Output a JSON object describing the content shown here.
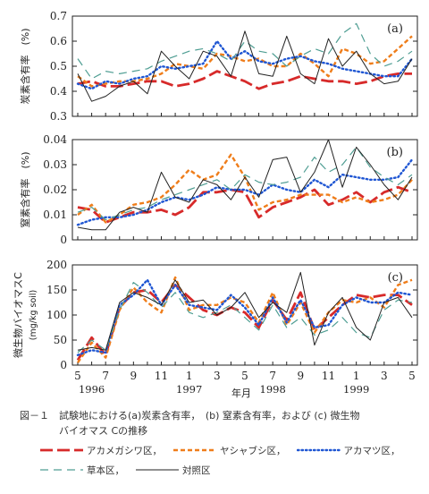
{
  "figure": {
    "caption_line1": "図－１　試験地における(a)炭素含有率，　(b) 窒素含有率，および (c) 微生物",
    "caption_line2": "バイオマス Cの推移"
  },
  "colors": {
    "s1": "#d72a2a",
    "s2": "#ef7d1a",
    "s3": "#1f56d3",
    "s4": "#4f9e93",
    "s5": "#222222"
  },
  "chart_data": [
    {
      "type": "line",
      "panel_label": "(a)",
      "ylabel": "炭素含有率　(%)",
      "ylim": [
        0.3,
        0.7
      ],
      "yticks": [
        "0.3",
        "0.4",
        "0.5",
        "0.6",
        "0.7"
      ],
      "ytick_values": [
        0.3,
        0.4,
        0.5,
        0.6,
        0.7
      ],
      "x": [
        1,
        2,
        3,
        4,
        5,
        6,
        7,
        8,
        9,
        10,
        11,
        12,
        13,
        14,
        15,
        16,
        17,
        18,
        19,
        20,
        21,
        22,
        23,
        24,
        25
      ],
      "series": [
        {
          "name": "アカメガシワ区",
          "color_key": "s1",
          "dash": "long",
          "values": [
            0.43,
            0.44,
            0.42,
            0.42,
            0.43,
            0.44,
            0.44,
            0.42,
            0.43,
            0.45,
            0.48,
            0.46,
            0.44,
            0.41,
            0.43,
            0.44,
            0.46,
            0.45,
            0.44,
            0.44,
            0.43,
            0.44,
            0.46,
            0.47,
            0.47
          ]
        },
        {
          "name": "ヤシャブシ区",
          "color_key": "s2",
          "dash": "short",
          "values": [
            0.46,
            0.42,
            0.43,
            0.44,
            0.44,
            0.45,
            0.47,
            0.51,
            0.5,
            0.49,
            0.55,
            0.54,
            0.52,
            0.53,
            0.5,
            0.5,
            0.55,
            0.51,
            0.46,
            0.57,
            0.55,
            0.51,
            0.52,
            0.57,
            0.62
          ]
        },
        {
          "name": "アカマツ区",
          "color_key": "s3",
          "dash": "dot",
          "values": [
            0.43,
            0.41,
            0.44,
            0.43,
            0.45,
            0.46,
            0.5,
            0.49,
            0.5,
            0.51,
            0.6,
            0.53,
            0.56,
            0.52,
            0.51,
            0.53,
            0.54,
            0.52,
            0.51,
            0.49,
            0.48,
            0.47,
            0.46,
            0.46,
            0.53
          ]
        },
        {
          "name": "草本区",
          "color_key": "s4",
          "dash": "dash",
          "values": [
            0.53,
            0.45,
            0.48,
            0.47,
            0.48,
            0.49,
            0.52,
            0.54,
            0.56,
            0.57,
            0.55,
            0.52,
            0.6,
            0.56,
            0.55,
            0.5,
            0.54,
            0.57,
            0.55,
            0.63,
            0.67,
            0.55,
            0.5,
            0.52,
            0.56
          ]
        },
        {
          "name": "対照区",
          "color_key": "s5",
          "dash": "solid",
          "values": [
            0.47,
            0.36,
            0.38,
            0.42,
            0.44,
            0.39,
            0.56,
            0.5,
            0.45,
            0.56,
            0.54,
            0.46,
            0.64,
            0.47,
            0.46,
            0.62,
            0.47,
            0.43,
            0.61,
            0.5,
            0.56,
            0.47,
            0.43,
            0.44,
            0.53
          ]
        }
      ]
    },
    {
      "type": "line",
      "panel_label": "(b)",
      "ylabel": "窒素含有率　(%)",
      "ylim": [
        0,
        0.04
      ],
      "yticks": [
        "0",
        "0.01",
        "0.02",
        "0.03",
        "0.04"
      ],
      "ytick_values": [
        0,
        0.01,
        0.02,
        0.03,
        0.04
      ],
      "x": [
        1,
        2,
        3,
        4,
        5,
        6,
        7,
        8,
        9,
        10,
        11,
        12,
        13,
        14,
        15,
        16,
        17,
        18,
        19,
        20,
        21,
        22,
        23,
        24,
        25
      ],
      "series": [
        {
          "name": "アカメガシワ区",
          "color_key": "s1",
          "dash": "long",
          "values": [
            0.013,
            0.012,
            0.007,
            0.009,
            0.011,
            0.011,
            0.012,
            0.01,
            0.013,
            0.019,
            0.019,
            0.02,
            0.019,
            0.009,
            0.013,
            0.015,
            0.017,
            0.02,
            0.014,
            0.016,
            0.019,
            0.015,
            0.019,
            0.021,
            0.019
          ]
        },
        {
          "name": "ヤシャブシ区",
          "color_key": "s2",
          "dash": "short",
          "values": [
            0.01,
            0.014,
            0.007,
            0.01,
            0.014,
            0.015,
            0.017,
            0.022,
            0.028,
            0.024,
            0.026,
            0.034,
            0.025,
            0.012,
            0.015,
            0.016,
            0.018,
            0.018,
            0.018,
            0.015,
            0.017,
            0.015,
            0.016,
            0.018,
            0.024
          ]
        },
        {
          "name": "アカマツ区",
          "color_key": "s3",
          "dash": "dot",
          "values": [
            0.006,
            0.008,
            0.009,
            0.009,
            0.01,
            0.012,
            0.015,
            0.017,
            0.016,
            0.018,
            0.021,
            0.02,
            0.02,
            0.018,
            0.022,
            0.02,
            0.019,
            0.024,
            0.021,
            0.026,
            0.025,
            0.024,
            0.024,
            0.025,
            0.032
          ]
        },
        {
          "name": "草本区",
          "color_key": "s4",
          "dash": "dash",
          "values": [
            0.011,
            0.013,
            0.008,
            0.01,
            0.012,
            0.013,
            0.016,
            0.018,
            0.02,
            0.022,
            0.024,
            0.02,
            0.026,
            0.023,
            0.022,
            0.023,
            0.025,
            0.033,
            0.027,
            0.03,
            0.037,
            0.029,
            0.025,
            0.022,
            0.026
          ]
        },
        {
          "name": "対照区",
          "color_key": "s5",
          "dash": "solid",
          "values": [
            0.005,
            0.004,
            0.004,
            0.011,
            0.013,
            0.011,
            0.027,
            0.017,
            0.015,
            0.024,
            0.022,
            0.016,
            0.025,
            0.017,
            0.032,
            0.033,
            0.019,
            0.027,
            0.04,
            0.021,
            0.037,
            0.03,
            0.022,
            0.016,
            0.025
          ]
        }
      ]
    },
    {
      "type": "line",
      "panel_label": "(c)",
      "ylabel": "微生物バイオマスC",
      "ylabel2": "(mg/kg soil)",
      "ylim": [
        0,
        200
      ],
      "yticks": [
        "0",
        "50",
        "100",
        "150",
        "200"
      ],
      "ytick_values": [
        0,
        50,
        100,
        150,
        200
      ],
      "x": [
        1,
        2,
        3,
        4,
        5,
        6,
        7,
        8,
        9,
        10,
        11,
        12,
        13,
        14,
        15,
        16,
        17,
        18,
        19,
        20,
        21,
        22,
        23,
        24,
        25
      ],
      "series": [
        {
          "name": "アカメガシワ区",
          "color_key": "s1",
          "dash": "long",
          "values": [
            10,
            55,
            20,
            115,
            145,
            150,
            125,
            160,
            135,
            110,
            100,
            115,
            105,
            75,
            130,
            90,
            145,
            70,
            95,
            120,
            140,
            135,
            140,
            140,
            120
          ]
        },
        {
          "name": "ヤシャブシ区",
          "color_key": "s2",
          "dash": "short",
          "values": [
            5,
            45,
            15,
            110,
            155,
            125,
            105,
            175,
            110,
            120,
            120,
            135,
            125,
            85,
            145,
            80,
            125,
            65,
            105,
            130,
            125,
            135,
            115,
            160,
            170
          ]
        },
        {
          "name": "アカマツ区",
          "color_key": "s3",
          "dash": "dot",
          "values": [
            20,
            30,
            25,
            120,
            140,
            170,
            120,
            160,
            120,
            115,
            110,
            140,
            115,
            80,
            135,
            85,
            130,
            75,
            80,
            120,
            135,
            125,
            125,
            145,
            140
          ]
        },
        {
          "name": "草本区",
          "color_key": "s4",
          "dash": "dash",
          "values": [
            25,
            50,
            30,
            110,
            165,
            145,
            115,
            145,
            105,
            95,
            105,
            120,
            95,
            70,
            120,
            75,
            95,
            60,
            70,
            95,
            65,
            55,
            110,
            130,
            125
          ]
        },
        {
          "name": "対照区",
          "color_key": "s5",
          "dash": "solid",
          "values": [
            30,
            35,
            30,
            125,
            145,
            135,
            120,
            170,
            125,
            130,
            100,
            115,
            145,
            95,
            125,
            105,
            185,
            40,
            105,
            135,
            75,
            50,
            125,
            135,
            95
          ]
        }
      ]
    }
  ],
  "axes": {
    "month_ticks": [
      "5",
      "7",
      "9",
      "11",
      "1",
      "3",
      "5",
      "7",
      "9",
      "11",
      "1",
      "3",
      "5",
      "7",
      "9",
      "11",
      "1",
      "3",
      "5"
    ],
    "year_ticks": [
      "1996",
      "1997",
      "1998",
      "1999"
    ],
    "xlabel": "年月"
  },
  "legend": [
    {
      "name": "アカメガシワ区",
      "color_key": "s1",
      "dash": "long",
      "suffix": "，"
    },
    {
      "name": "ヤシャブシ区",
      "color_key": "s2",
      "dash": "short",
      "suffix": "，"
    },
    {
      "name": "アカマツ区",
      "color_key": "s3",
      "dash": "dot",
      "suffix": "，"
    },
    {
      "name": "草本区",
      "color_key": "s4",
      "dash": "dash",
      "suffix": "，"
    },
    {
      "name": "対照区",
      "color_key": "s5",
      "dash": "solid",
      "suffix": ""
    }
  ]
}
